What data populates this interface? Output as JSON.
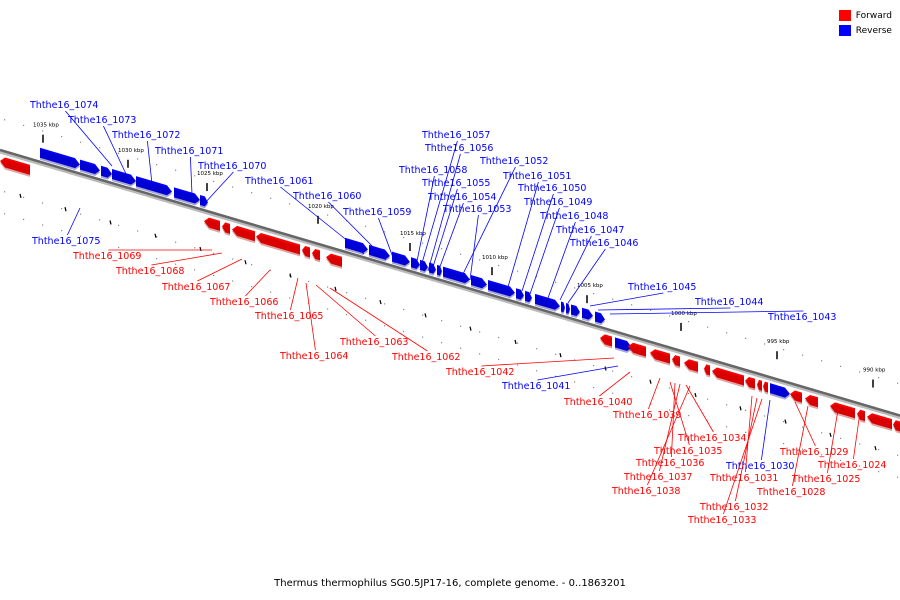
{
  "legend": [
    {
      "label": "Forward",
      "color": "#ff0000"
    },
    {
      "label": "Reverse",
      "color": "#0000ff"
    }
  ],
  "caption": "Thermus thermophilus SG0.5JP17-16, complete genome. - 0..1863201",
  "scale_marks": [
    "1035 kbp",
    "1030 kbp",
    "1025 kbp",
    "1020 kbp",
    "1015 kbp",
    "1010 kbp",
    "1005 kbp",
    "1000 kbp",
    "995 kbp",
    "990 kbp"
  ],
  "genes": [
    {
      "label": "Ththe16_1074",
      "strand": "reverse"
    },
    {
      "label": "Ththe16_1073",
      "strand": "reverse"
    },
    {
      "label": "Ththe16_1072",
      "strand": "reverse"
    },
    {
      "label": "Ththe16_1071",
      "strand": "reverse"
    },
    {
      "label": "Ththe16_1070",
      "strand": "reverse"
    },
    {
      "label": "Ththe16_1061",
      "strand": "reverse"
    },
    {
      "label": "Ththe16_1060",
      "strand": "reverse"
    },
    {
      "label": "Ththe16_1059",
      "strand": "reverse"
    },
    {
      "label": "Ththe16_1075",
      "strand": "reverse"
    },
    {
      "label": "Ththe16_1057",
      "strand": "reverse"
    },
    {
      "label": "Ththe16_1056",
      "strand": "reverse"
    },
    {
      "label": "Ththe16_1052",
      "strand": "reverse"
    },
    {
      "label": "Ththe16_1058",
      "strand": "reverse"
    },
    {
      "label": "Ththe16_1055",
      "strand": "reverse"
    },
    {
      "label": "Ththe16_1054",
      "strand": "reverse"
    },
    {
      "label": "Ththe16_1053",
      "strand": "reverse"
    },
    {
      "label": "Ththe16_1051",
      "strand": "reverse"
    },
    {
      "label": "Ththe16_1050",
      "strand": "reverse"
    },
    {
      "label": "Ththe16_1049",
      "strand": "reverse"
    },
    {
      "label": "Ththe16_1048",
      "strand": "reverse"
    },
    {
      "label": "Ththe16_1047",
      "strand": "reverse"
    },
    {
      "label": "Ththe16_1046",
      "strand": "reverse"
    },
    {
      "label": "Ththe16_1045",
      "strand": "reverse"
    },
    {
      "label": "Ththe16_1044",
      "strand": "reverse"
    },
    {
      "label": "Ththe16_1043",
      "strand": "reverse"
    },
    {
      "label": "Ththe16_1041",
      "strand": "reverse"
    },
    {
      "label": "Ththe16_1030",
      "strand": "reverse"
    },
    {
      "label": "Ththe16_1069",
      "strand": "forward"
    },
    {
      "label": "Ththe16_1068",
      "strand": "forward"
    },
    {
      "label": "Ththe16_1067",
      "strand": "forward"
    },
    {
      "label": "Ththe16_1066",
      "strand": "forward"
    },
    {
      "label": "Ththe16_1065",
      "strand": "forward"
    },
    {
      "label": "Ththe16_1064",
      "strand": "forward"
    },
    {
      "label": "Ththe16_1063",
      "strand": "forward"
    },
    {
      "label": "Ththe16_1062",
      "strand": "forward"
    },
    {
      "label": "Ththe16_1042",
      "strand": "forward"
    },
    {
      "label": "Ththe16_1040",
      "strand": "forward"
    },
    {
      "label": "Ththe16_1039",
      "strand": "forward"
    },
    {
      "label": "Ththe16_1034",
      "strand": "forward"
    },
    {
      "label": "Ththe16_1035",
      "strand": "forward"
    },
    {
      "label": "Ththe16_1036",
      "strand": "forward"
    },
    {
      "label": "Ththe16_1037",
      "strand": "forward"
    },
    {
      "label": "Ththe16_1038",
      "strand": "forward"
    },
    {
      "label": "Ththe16_1031",
      "strand": "forward"
    },
    {
      "label": "Ththe16_1032",
      "strand": "forward"
    },
    {
      "label": "Ththe16_1033",
      "strand": "forward"
    },
    {
      "label": "Ththe16_1029",
      "strand": "forward"
    },
    {
      "label": "Ththe16_1028",
      "strand": "forward"
    },
    {
      "label": "Ththe16_1025",
      "strand": "forward"
    },
    {
      "label": "Ththe16_1024",
      "strand": "forward"
    }
  ]
}
